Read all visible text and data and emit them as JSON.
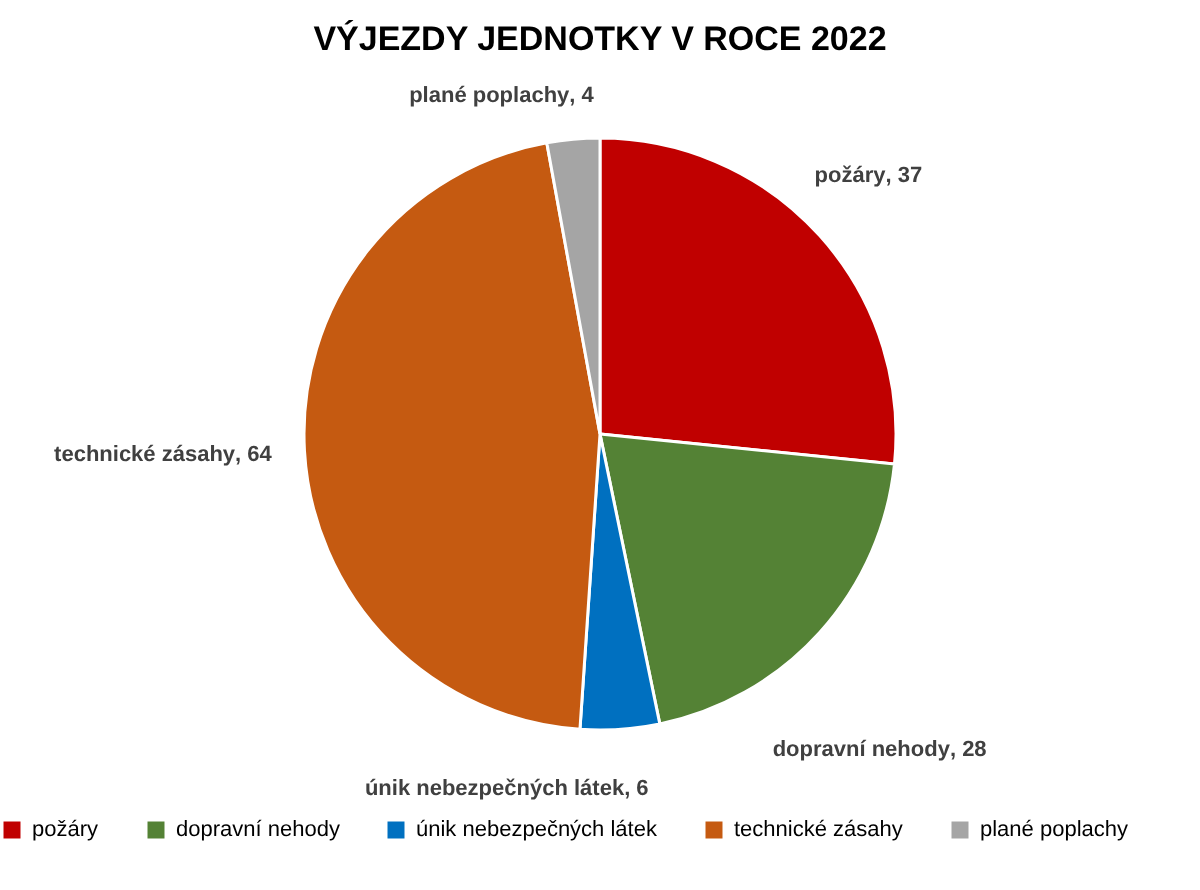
{
  "chart_data": {
    "type": "pie",
    "title": "VÝJEZDY JEDNOTKY V ROCE 2022",
    "categories": [
      "požáry",
      "dopravní nehody",
      "únik nebezpečných látek",
      "technické zásahy",
      "plané poplachy"
    ],
    "values": [
      37,
      28,
      6,
      64,
      4
    ],
    "colors": [
      "#c00000",
      "#548235",
      "#0070c0",
      "#c55a11",
      "#a5a5a5"
    ],
    "value_labels": [
      ", 37",
      ", 28",
      ", 6",
      ", 64",
      ", 4"
    ],
    "legend": "bottom"
  }
}
